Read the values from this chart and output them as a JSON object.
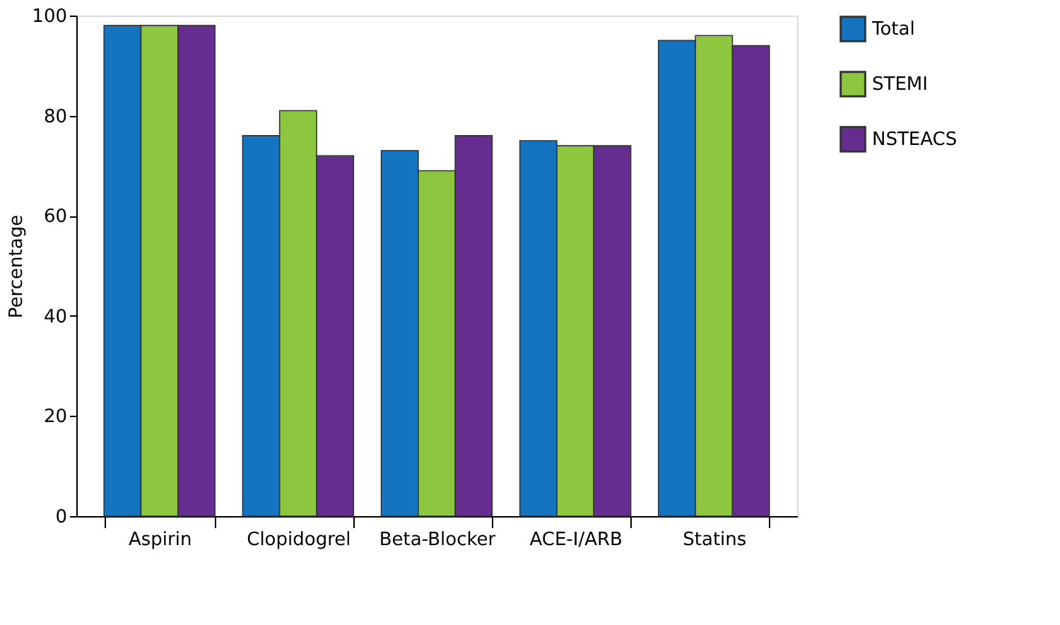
{
  "chart_data": {
    "type": "bar",
    "ylabel": "Percentage",
    "categories": [
      "Aspirin",
      "Clopidogrel",
      "Beta-Blocker",
      "ACE-I/ARB",
      "Statins"
    ],
    "series": [
      {
        "name": "Total",
        "color": "#1474bf",
        "values": [
          98,
          76,
          73,
          75,
          95
        ]
      },
      {
        "name": "STEMI",
        "color": "#8dc63f",
        "values": [
          98,
          81,
          69,
          74,
          96
        ]
      },
      {
        "name": "NSTEACS",
        "color": "#662d91",
        "values": [
          98,
          72,
          76,
          74,
          94
        ]
      }
    ],
    "ylim": [
      0,
      100
    ],
    "yticks": [
      0,
      20,
      40,
      60,
      80,
      100
    ],
    "grid": false,
    "legend": "right"
  }
}
